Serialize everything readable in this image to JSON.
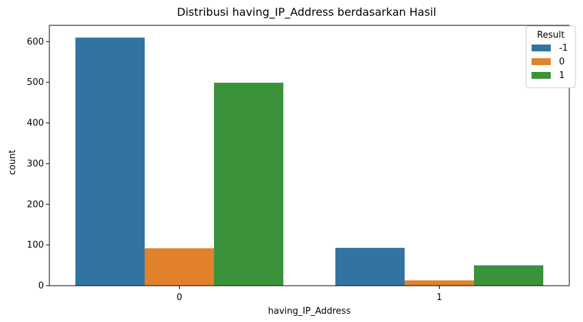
{
  "chart_data": {
    "type": "bar",
    "title": "Distribusi having_IP_Address berdasarkan Hasil",
    "xlabel": "having_IP_Address",
    "ylabel": "count",
    "categories": [
      "0",
      "1"
    ],
    "series": [
      {
        "name": "-1",
        "values": [
          610,
          93
        ],
        "color": "#3274a1"
      },
      {
        "name": "0",
        "values": [
          92,
          13
        ],
        "color": "#e1812c"
      },
      {
        "name": "1",
        "values": [
          499,
          50
        ],
        "color": "#3a923a"
      }
    ],
    "yticks": [
      0,
      100,
      200,
      300,
      400,
      500,
      600
    ],
    "ylim": [
      0,
      640
    ],
    "grid": false,
    "legend": {
      "title": "Result",
      "placement": "top-right"
    }
  }
}
